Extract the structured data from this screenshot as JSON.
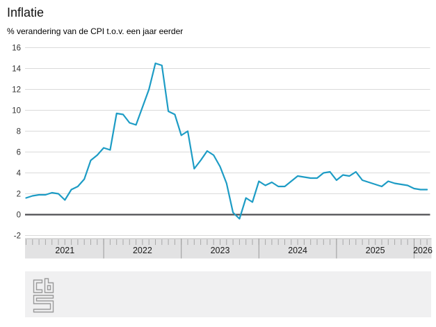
{
  "page": {
    "title": "Inflatie",
    "subtitle": "% verandering van de CPI t.o.v. een jaar eerder"
  },
  "chart_data": {
    "type": "line",
    "title": "Inflatie",
    "subtitle": "% verandering van de CPI t.o.v. een jaar eerder",
    "unit": "%",
    "x_start": "2021-01",
    "x_end": "2026-03",
    "x_tick_interval": "month",
    "year_labels": [
      "2021",
      "2022",
      "2023",
      "2024",
      "2025",
      "2026"
    ],
    "y_ticks": [
      16,
      14,
      12,
      10,
      8,
      6,
      4,
      2,
      0,
      -2
    ],
    "ylim": [
      -2,
      16
    ],
    "grid": true,
    "legend": "none",
    "colors": {
      "line": "#1d9cc5",
      "zero_line": "#4d4d50",
      "grid": "#dadada",
      "axis_band": "#e2e2e3",
      "axis_band_edge": "#bebebe",
      "tick": "#a8a8a8",
      "year_separator": "#9a9a9a",
      "label": "#303030",
      "footer": "#f0f0f1",
      "logo": "#9a9a9a"
    },
    "series": [
      {
        "name": "CPI inflatie t.o.v. een jaar eerder",
        "data": [
          {
            "year": 2021,
            "values": [
              1.6,
              1.8,
              1.9,
              1.9,
              2.1,
              2.0,
              1.4,
              2.4,
              2.7,
              3.4,
              5.2,
              5.7
            ]
          },
          {
            "year": 2022,
            "values": [
              6.4,
              6.2,
              9.7,
              9.6,
              8.8,
              8.6,
              10.3,
              12.0,
              14.5,
              14.3,
              9.9,
              9.6
            ]
          },
          {
            "year": 2023,
            "values": [
              7.6,
              8.0,
              4.4,
              5.2,
              6.1,
              5.7,
              4.6,
              3.0,
              0.2,
              -0.4,
              1.6,
              1.2
            ]
          },
          {
            "year": 2024,
            "values": [
              3.2,
              2.8,
              3.1,
              2.7,
              2.7,
              3.2,
              3.7,
              3.6,
              3.5,
              3.5,
              4.0,
              4.1
            ]
          },
          {
            "year": 2025,
            "values": [
              3.3,
              3.8,
              3.7,
              4.1,
              3.3,
              3.1,
              2.9,
              2.7,
              3.2,
              3.0,
              2.9,
              2.8
            ]
          },
          {
            "year": 2026,
            "values": [
              2.5,
              2.4,
              2.4
            ]
          }
        ]
      }
    ]
  },
  "footer": {
    "logo_name": "CBS"
  }
}
